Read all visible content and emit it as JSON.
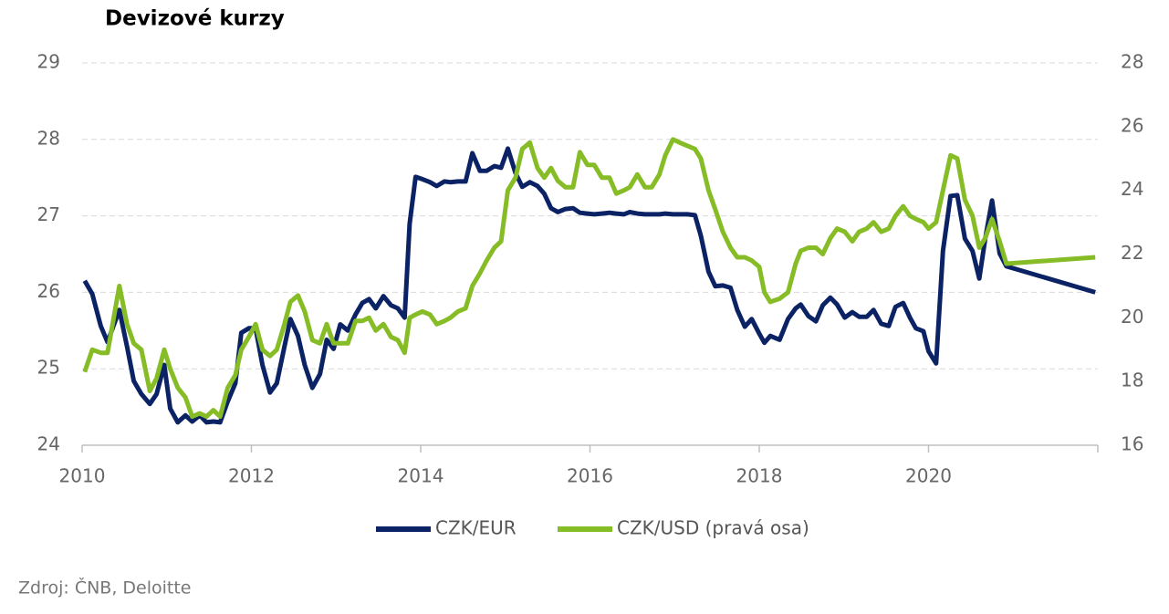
{
  "chart_data": {
    "type": "line",
    "title": "Devizové kurzy",
    "source": "Zdroj: ČNB, Deloitte",
    "x": [
      2010.03,
      2010.12,
      2010.22,
      2010.3,
      2010.44,
      2010.53,
      2010.61,
      2010.7,
      2010.8,
      2010.88,
      2010.97,
      2011.04,
      2011.13,
      2011.22,
      2011.3,
      2011.39,
      2011.47,
      2011.55,
      2011.63,
      2011.72,
      2011.81,
      2011.88,
      2011.97,
      2012.05,
      2012.13,
      2012.22,
      2012.3,
      2012.39,
      2012.46,
      2012.55,
      2012.63,
      2012.72,
      2012.81,
      2012.89,
      2012.97,
      2013.05,
      2013.14,
      2013.23,
      2013.31,
      2013.39,
      2013.47,
      2013.56,
      2013.65,
      2013.73,
      2013.81,
      2013.87,
      2013.94,
      2014.02,
      2014.11,
      2014.19,
      2014.28,
      2014.35,
      2014.44,
      2014.53,
      2014.61,
      2014.7,
      2014.78,
      2014.87,
      2014.95,
      2015.03,
      2015.12,
      2015.2,
      2015.29,
      2015.38,
      2015.46,
      2015.54,
      2015.62,
      2015.71,
      2015.8,
      2015.88,
      2015.97,
      2016.05,
      2016.14,
      2016.23,
      2016.31,
      2016.4,
      2016.47,
      2016.56,
      2016.65,
      2016.73,
      2016.82,
      2016.89,
      2016.98,
      2017.06,
      2017.15,
      2017.24,
      2017.31,
      2017.4,
      2017.48,
      2017.57,
      2017.66,
      2017.74,
      2017.83,
      2017.91,
      2018.0,
      2018.06,
      2018.13,
      2018.24,
      2018.34,
      2018.43,
      2018.49,
      2018.58,
      2018.67,
      2018.75,
      2018.84,
      2018.92,
      2019.01,
      2019.1,
      2019.18,
      2019.27,
      2019.35,
      2019.44,
      2019.53,
      2019.61,
      2019.7,
      2019.78,
      2019.85,
      2019.94,
      2020.0,
      2020.09,
      2020.17,
      2020.26,
      2020.34,
      2020.43,
      2020.52,
      2020.6,
      2020.67,
      2020.75,
      2020.84,
      2020.92,
      2021.97
    ],
    "series": [
      {
        "name": "CZK/EUR",
        "color": "#0b2265",
        "values": [
          26.15,
          25.98,
          25.56,
          25.35,
          25.77,
          25.29,
          24.84,
          24.67,
          24.54,
          24.67,
          25.05,
          24.48,
          24.3,
          24.39,
          24.31,
          24.39,
          24.3,
          24.31,
          24.3,
          24.57,
          24.81,
          25.47,
          25.53,
          25.53,
          25.05,
          24.69,
          24.81,
          25.29,
          25.65,
          25.43,
          25.05,
          24.75,
          24.93,
          25.38,
          25.26,
          25.58,
          25.5,
          25.71,
          25.86,
          25.91,
          25.79,
          25.95,
          25.83,
          25.79,
          25.67,
          26.9,
          27.51,
          27.48,
          27.44,
          27.39,
          27.45,
          27.44,
          27.45,
          27.45,
          27.82,
          27.59,
          27.59,
          27.65,
          27.63,
          27.88,
          27.56,
          27.38,
          27.44,
          27.39,
          27.29,
          27.1,
          27.05,
          27.09,
          27.1,
          27.04,
          27.03,
          27.02,
          27.03,
          27.04,
          27.03,
          27.02,
          27.05,
          27.03,
          27.02,
          27.02,
          27.02,
          27.03,
          27.02,
          27.02,
          27.02,
          27.01,
          26.74,
          26.27,
          26.08,
          26.09,
          26.06,
          25.77,
          25.55,
          25.65,
          25.46,
          25.34,
          25.43,
          25.38,
          25.65,
          25.79,
          25.84,
          25.69,
          25.62,
          25.83,
          25.93,
          25.84,
          25.67,
          25.74,
          25.68,
          25.68,
          25.77,
          25.59,
          25.56,
          25.81,
          25.86,
          25.67,
          25.53,
          25.49,
          25.23,
          25.07,
          26.54,
          27.26,
          27.27,
          26.7,
          26.54,
          26.18,
          26.7,
          27.2,
          26.51,
          26.34,
          26.0
        ]
      },
      {
        "name": "CZK/USD (pravá osa)",
        "color": "#86bc25",
        "axis": "y2",
        "values": [
          18.3,
          19.0,
          18.9,
          18.9,
          21.0,
          19.8,
          19.2,
          19.0,
          17.7,
          18.1,
          19.0,
          18.4,
          17.8,
          17.5,
          16.9,
          17.0,
          16.9,
          17.1,
          16.9,
          17.8,
          18.2,
          19.0,
          19.4,
          19.8,
          19.0,
          18.8,
          19.0,
          19.8,
          20.5,
          20.7,
          20.2,
          19.3,
          19.2,
          19.8,
          19.2,
          19.2,
          19.2,
          19.9,
          19.9,
          20.0,
          19.6,
          19.8,
          19.4,
          19.3,
          18.9,
          20.0,
          20.1,
          20.2,
          20.1,
          19.8,
          19.9,
          20.0,
          20.2,
          20.3,
          21.0,
          21.4,
          21.8,
          22.2,
          22.4,
          24.0,
          24.4,
          25.3,
          25.5,
          24.7,
          24.4,
          24.7,
          24.3,
          24.1,
          24.1,
          25.2,
          24.8,
          24.8,
          24.4,
          24.4,
          23.9,
          24.0,
          24.1,
          24.5,
          24.1,
          24.1,
          24.5,
          25.1,
          25.6,
          25.5,
          25.4,
          25.3,
          25.0,
          24.0,
          23.4,
          22.7,
          22.2,
          21.9,
          21.9,
          21.8,
          21.6,
          20.8,
          20.5,
          20.6,
          20.8,
          21.7,
          22.1,
          22.2,
          22.2,
          22.0,
          22.5,
          22.8,
          22.7,
          22.4,
          22.7,
          22.8,
          23.0,
          22.7,
          22.8,
          23.2,
          23.5,
          23.2,
          23.1,
          23.0,
          22.8,
          23.0,
          24.0,
          25.1,
          25.0,
          23.7,
          23.2,
          22.2,
          22.5,
          23.1,
          22.4,
          21.7,
          21.9
        ]
      }
    ],
    "xlim": [
      2010,
      2022
    ],
    "xticks": [
      2010,
      2012,
      2014,
      2016,
      2018,
      2020
    ],
    "ylim": [
      24,
      29
    ],
    "yticks": [
      24,
      25,
      26,
      27,
      28,
      29
    ],
    "y2lim": [
      16,
      28
    ],
    "y2ticks": [
      16,
      18,
      20,
      22,
      24,
      26,
      28
    ],
    "grid": true,
    "legend": "bottom"
  }
}
